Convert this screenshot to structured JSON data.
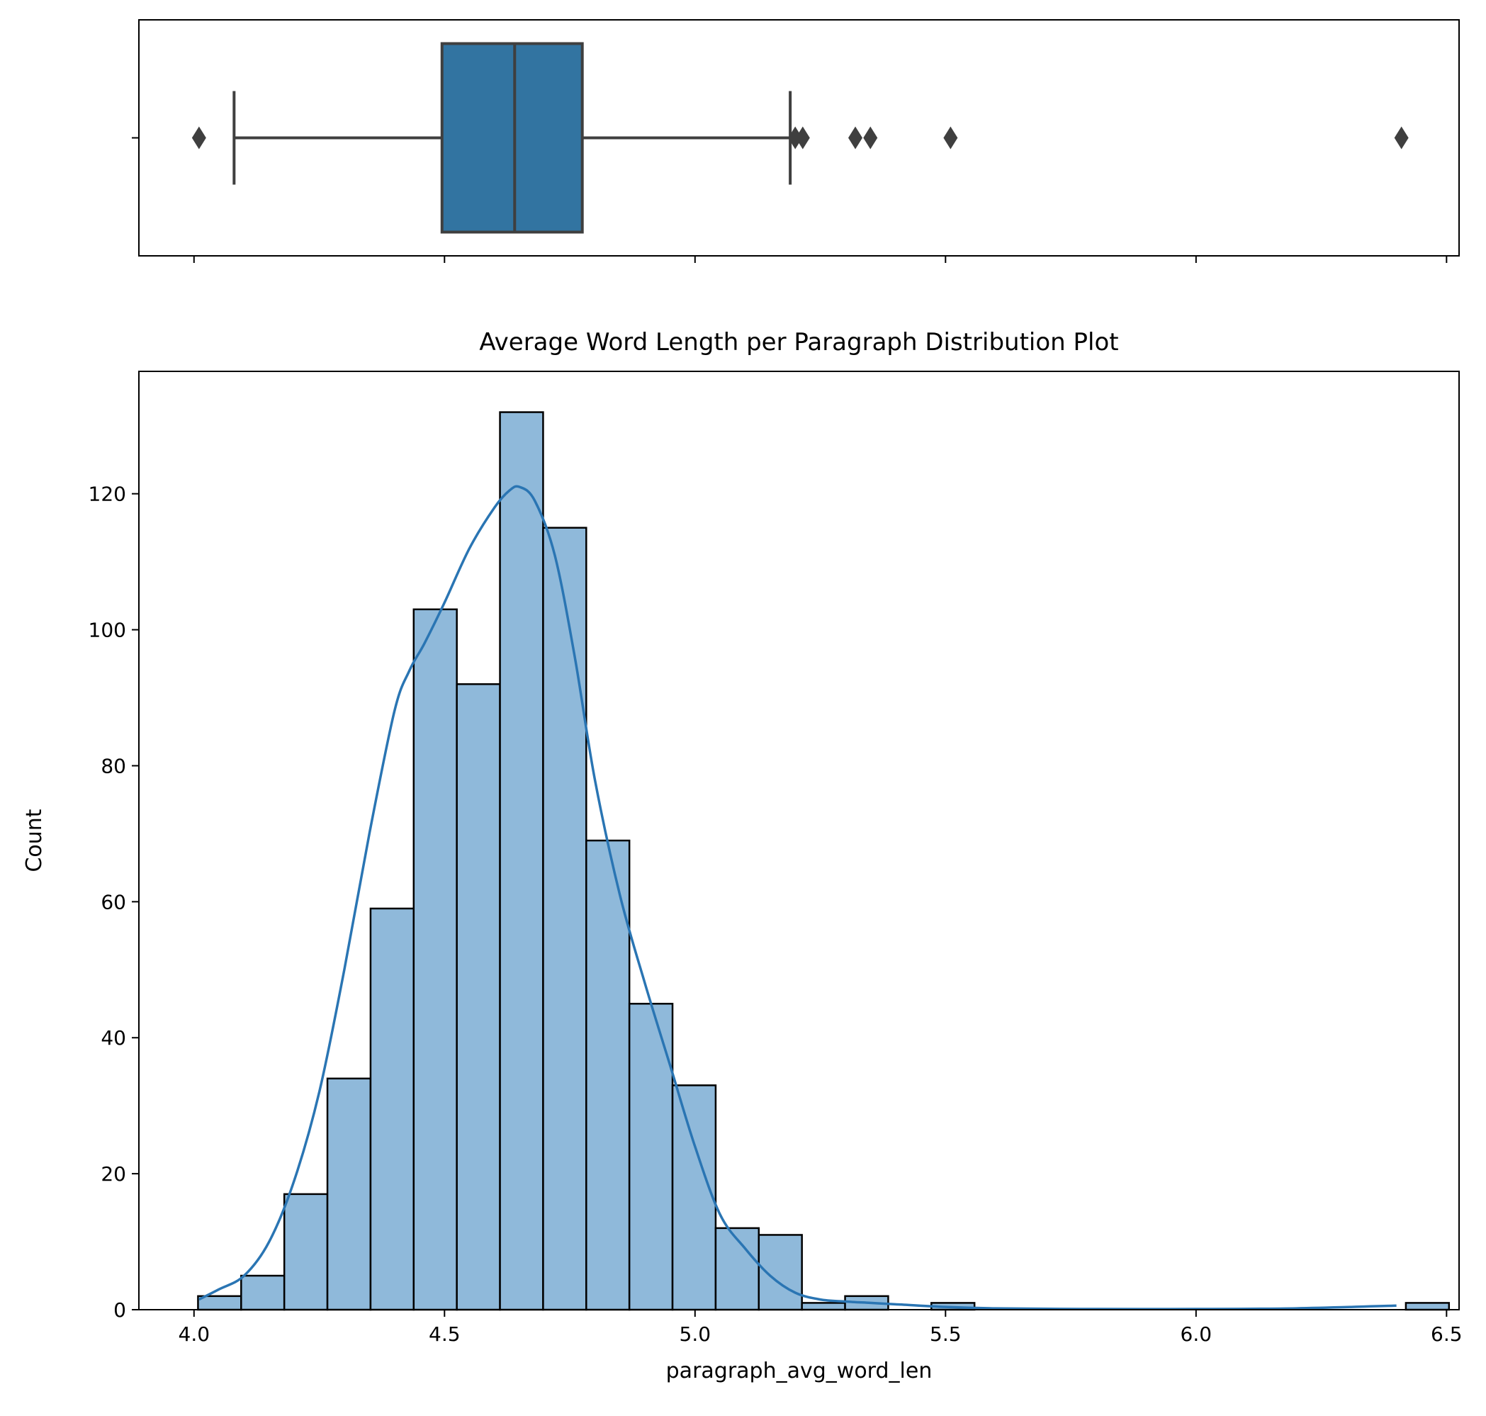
{
  "chart_data": [
    {
      "type": "box",
      "orientation": "horizontal",
      "whisker_low": 4.08,
      "q1": 4.495,
      "median": 4.64,
      "q3": 4.775,
      "whisker_high": 5.19,
      "outliers": [
        4.01,
        5.2,
        5.215,
        5.32,
        5.35,
        5.51,
        6.41
      ],
      "xlim": [
        3.89,
        6.525
      ],
      "x_ticks": [
        4.0,
        4.5,
        5.0,
        5.5,
        6.0,
        6.5
      ],
      "tick_labels_visible": false,
      "box_color": "#3274a1",
      "line_color": "#3f3f3f"
    },
    {
      "type": "bar",
      "subtype": "histogram_with_kde",
      "title": "Average Word Length per Paragraph Distribution Plot",
      "xlabel": "paragraph_avg_word_len",
      "ylabel": "Count",
      "xlim": [
        3.89,
        6.525
      ],
      "ylim": [
        0,
        138
      ],
      "x_ticks": [
        4.0,
        4.5,
        5.0,
        5.5,
        6.0,
        6.5
      ],
      "x_tick_labels": [
        "4.0",
        "4.5",
        "5.0",
        "5.5",
        "6.0",
        "6.5"
      ],
      "y_ticks": [
        0,
        20,
        40,
        60,
        80,
        100,
        120
      ],
      "y_tick_labels": [
        "0",
        "20",
        "40",
        "60",
        "80",
        "100",
        "120"
      ],
      "bin_start": 4.008,
      "bin_width": 0.0861,
      "counts": [
        2,
        5,
        17,
        34,
        59,
        103,
        92,
        132,
        115,
        69,
        45,
        33,
        12,
        11,
        1,
        2,
        0,
        1,
        0,
        0,
        0,
        0,
        0,
        0,
        0,
        0,
        0,
        0,
        1
      ],
      "bar_color": "#8fb9da",
      "edge_color": "#000000",
      "kde_color": "#2a75b3",
      "kde": {
        "x": [
          4.01,
          4.05,
          4.1,
          4.15,
          4.2,
          4.25,
          4.3,
          4.35,
          4.4,
          4.43,
          4.46,
          4.5,
          4.55,
          4.6,
          4.63,
          4.65,
          4.68,
          4.72,
          4.76,
          4.8,
          4.85,
          4.9,
          4.95,
          5.0,
          5.05,
          5.1,
          5.15,
          5.2,
          5.25,
          5.3,
          5.35,
          5.4,
          5.5,
          5.6,
          5.8,
          6.0,
          6.2,
          6.4
        ],
        "y": [
          1.5,
          3,
          5,
          10,
          19,
          32,
          50,
          70,
          88,
          94,
          98,
          104,
          112,
          118,
          120.5,
          121,
          119,
          111,
          96,
          78,
          61,
          48,
          36,
          24,
          14,
          9,
          5,
          2.5,
          1.5,
          1.2,
          1,
          0.8,
          0.4,
          0.2,
          0.1,
          0.1,
          0.2,
          0.6
        ]
      }
    }
  ]
}
